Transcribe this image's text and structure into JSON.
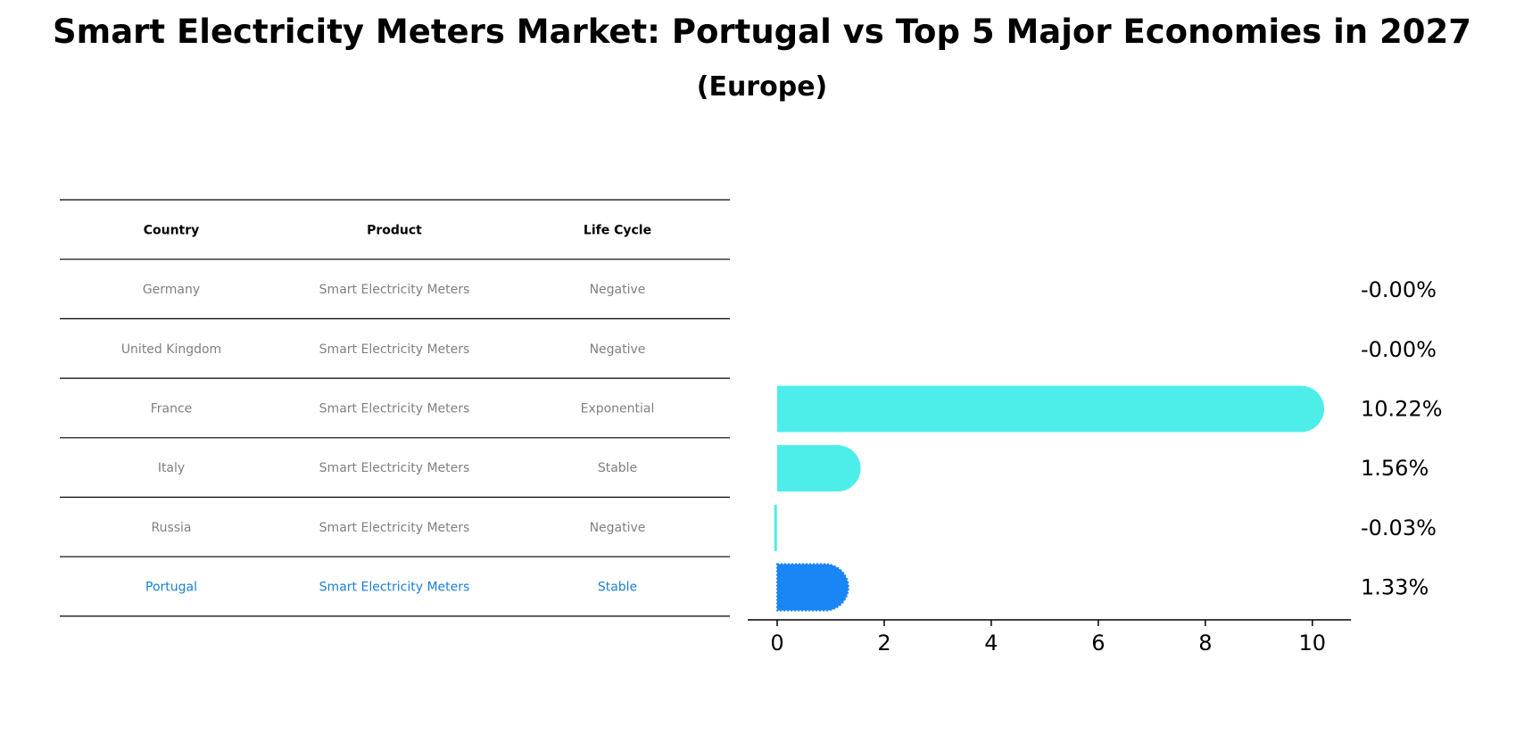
{
  "chart_data": {
    "type": "bar",
    "title": "Smart Electricity Meters Market: Portugal vs Top 5 Major Economies in 2027",
    "subtitle": "(Europe)",
    "table": {
      "headers": [
        "Country",
        "Product",
        "Life Cycle"
      ],
      "rows": [
        {
          "country": "Germany",
          "product": "Smart Electricity Meters",
          "life_cycle": "Negative"
        },
        {
          "country": "United Kingdom",
          "product": "Smart Electricity Meters",
          "life_cycle": "Negative"
        },
        {
          "country": "France",
          "product": "Smart Electricity Meters",
          "life_cycle": "Exponential"
        },
        {
          "country": "Italy",
          "product": "Smart Electricity Meters",
          "life_cycle": "Stable"
        },
        {
          "country": "Russia",
          "product": "Smart Electricity Meters",
          "life_cycle": "Negative"
        },
        {
          "country": "Portugal",
          "product": "Smart Electricity Meters",
          "life_cycle": "Stable"
        }
      ]
    },
    "categories": [
      "Germany",
      "United Kingdom",
      "France",
      "Italy",
      "Russia",
      "Portugal"
    ],
    "values": [
      -0.0,
      -0.0,
      10.22,
      1.56,
      -0.03,
      1.33
    ],
    "value_labels": [
      "-0.00%",
      "-0.00%",
      "10.22%",
      "1.56%",
      "-0.03%",
      "1.33%"
    ],
    "highlight": "Portugal",
    "xlim": [
      -0.55,
      10.72
    ],
    "xticks": [
      0,
      2,
      4,
      6,
      8,
      10
    ],
    "colors": {
      "bar": "#4deeea",
      "highlight_bar": "#1a86f5",
      "table_text": "#808080",
      "highlight_text": "#1a7fd4",
      "header_text": "#000000",
      "rule": "#000000"
    }
  }
}
